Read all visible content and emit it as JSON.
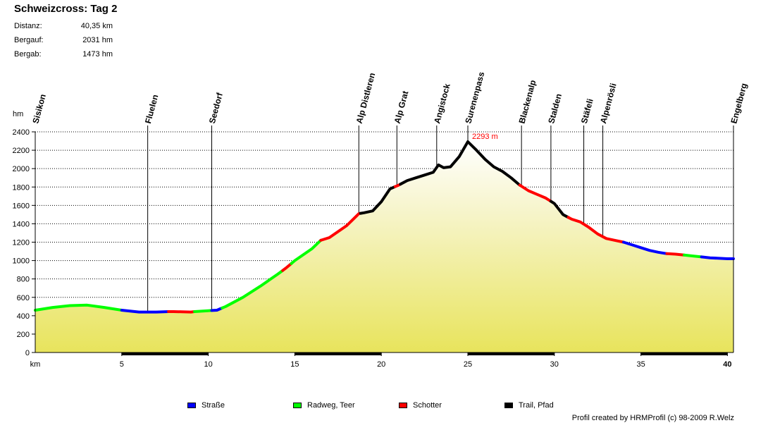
{
  "header": {
    "title": "Schweizcross: Tag 2",
    "stats": [
      {
        "label": "Distanz:",
        "value": "40,35 km"
      },
      {
        "label": "Bergauf:",
        "value": "2031 hm"
      },
      {
        "label": "Bergab:",
        "value": "1473 hm"
      }
    ]
  },
  "legend": [
    {
      "label": "Straße",
      "color": "#0000ff"
    },
    {
      "label": "Radweg, Teer",
      "color": "#00ff00"
    },
    {
      "label": "Schotter",
      "color": "#ff0000"
    },
    {
      "label": "Trail, Pfad",
      "color": "#000000"
    }
  ],
  "credit": "Profil created by HRMProfil (c) 98-2009 R.Welz",
  "chart_data": {
    "type": "area",
    "ylabel": "hm",
    "xlabel": "km",
    "xlim": [
      0,
      40.35
    ],
    "ylim": [
      0,
      2400
    ],
    "xticks": [
      5,
      10,
      15,
      20,
      25,
      30,
      35,
      40
    ],
    "yticks": [
      0,
      200,
      400,
      600,
      800,
      1000,
      1200,
      1400,
      1600,
      1800,
      2000,
      2200,
      2400
    ],
    "grid": true,
    "peak_label": "2293 m",
    "peak": {
      "x": 25.0,
      "y": 2293
    },
    "colors": {
      "Straße": "#0000ff",
      "Radweg, Teer": "#00ff00",
      "Schotter": "#ff0000",
      "Trail, Pfad": "#000000"
    },
    "waypoints": [
      {
        "name": "Sisikon",
        "km": 0.0
      },
      {
        "name": "Fluelen",
        "km": 6.5
      },
      {
        "name": "Seedorf",
        "km": 10.2
      },
      {
        "name": "Alp Distleren",
        "km": 18.7
      },
      {
        "name": "Alp Grat",
        "km": 20.9
      },
      {
        "name": "Angistock",
        "km": 23.2
      },
      {
        "name": "Surenenpass",
        "km": 25.0
      },
      {
        "name": "Blackenalp",
        "km": 28.1
      },
      {
        "name": "Stalden",
        "km": 29.8
      },
      {
        "name": "Stäfeli",
        "km": 31.7
      },
      {
        "name": "Alpenrösli",
        "km": 32.8
      },
      {
        "name": "Engelberg",
        "km": 40.35
      }
    ],
    "profile": [
      [
        0,
        460
      ],
      [
        1,
        490
      ],
      [
        2,
        510
      ],
      [
        3,
        515
      ],
      [
        4,
        490
      ],
      [
        5,
        460
      ],
      [
        6,
        440
      ],
      [
        7,
        440
      ],
      [
        7.7,
        445
      ],
      [
        8,
        445
      ],
      [
        9,
        440
      ],
      [
        9.2,
        445
      ],
      [
        10,
        455
      ],
      [
        10.5,
        460
      ],
      [
        11,
        500
      ],
      [
        12,
        600
      ],
      [
        13,
        720
      ],
      [
        14,
        850
      ],
      [
        14.5,
        920
      ],
      [
        15,
        1000
      ],
      [
        16,
        1130
      ],
      [
        16.5,
        1220
      ],
      [
        17,
        1250
      ],
      [
        18,
        1380
      ],
      [
        18.7,
        1510
      ],
      [
        19,
        1520
      ],
      [
        19.5,
        1540
      ],
      [
        20,
        1640
      ],
      [
        20.5,
        1780
      ],
      [
        21,
        1820
      ],
      [
        21.5,
        1870
      ],
      [
        22,
        1900
      ],
      [
        22.5,
        1930
      ],
      [
        23,
        1960
      ],
      [
        23.3,
        2040
      ],
      [
        23.6,
        2010
      ],
      [
        24,
        2020
      ],
      [
        24.5,
        2130
      ],
      [
        25,
        2293
      ],
      [
        25.5,
        2200
      ],
      [
        26,
        2100
      ],
      [
        26.5,
        2020
      ],
      [
        27,
        1970
      ],
      [
        27.5,
        1900
      ],
      [
        28,
        1820
      ],
      [
        28.5,
        1760
      ],
      [
        29,
        1720
      ],
      [
        29.5,
        1680
      ],
      [
        30,
        1620
      ],
      [
        30.5,
        1500
      ],
      [
        31,
        1450
      ],
      [
        31.5,
        1420
      ],
      [
        32,
        1360
      ],
      [
        32.5,
        1290
      ],
      [
        33,
        1240
      ],
      [
        33.5,
        1220
      ],
      [
        34,
        1200
      ],
      [
        34.5,
        1170
      ],
      [
        35,
        1140
      ],
      [
        35.5,
        1110
      ],
      [
        36,
        1090
      ],
      [
        36.5,
        1075
      ],
      [
        37,
        1070
      ],
      [
        37.5,
        1060
      ],
      [
        38,
        1050
      ],
      [
        38.5,
        1040
      ],
      [
        39,
        1030
      ],
      [
        40,
        1020
      ],
      [
        40.35,
        1020
      ]
    ],
    "segments": [
      {
        "from": 0,
        "to": 5,
        "type": "Radweg, Teer"
      },
      {
        "from": 5,
        "to": 7.7,
        "type": "Straße"
      },
      {
        "from": 7.7,
        "to": 9.2,
        "type": "Schotter"
      },
      {
        "from": 9.2,
        "to": 10.2,
        "type": "Radweg, Teer"
      },
      {
        "from": 10.2,
        "to": 10.8,
        "type": "Straße"
      },
      {
        "from": 10.8,
        "to": 14.3,
        "type": "Radweg, Teer"
      },
      {
        "from": 14.3,
        "to": 14.8,
        "type": "Schotter"
      },
      {
        "from": 14.8,
        "to": 16.5,
        "type": "Radweg, Teer"
      },
      {
        "from": 16.5,
        "to": 18.8,
        "type": "Schotter"
      },
      {
        "from": 18.8,
        "to": 20.8,
        "type": "Trail, Pfad"
      },
      {
        "from": 20.8,
        "to": 21.1,
        "type": "Schotter"
      },
      {
        "from": 21.1,
        "to": 28.0,
        "type": "Trail, Pfad"
      },
      {
        "from": 28.0,
        "to": 29.8,
        "type": "Schotter"
      },
      {
        "from": 29.8,
        "to": 30.8,
        "type": "Trail, Pfad"
      },
      {
        "from": 30.8,
        "to": 34.0,
        "type": "Schotter"
      },
      {
        "from": 34.0,
        "to": 36.5,
        "type": "Straße"
      },
      {
        "from": 36.5,
        "to": 37.5,
        "type": "Schotter"
      },
      {
        "from": 37.5,
        "to": 38.5,
        "type": "Radweg, Teer"
      },
      {
        "from": 38.5,
        "to": 40.35,
        "type": "Straße"
      }
    ],
    "surface_bar": [
      {
        "from": 5,
        "to": 10
      },
      {
        "from": 15,
        "to": 20
      },
      {
        "from": 25,
        "to": 30
      },
      {
        "from": 35,
        "to": 40
      }
    ]
  }
}
